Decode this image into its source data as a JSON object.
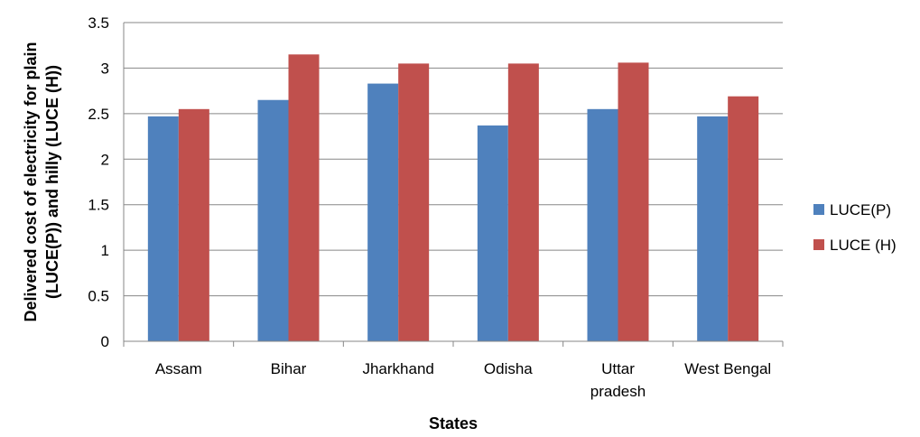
{
  "chart_data": {
    "type": "bar",
    "title": "",
    "xlabel": "States",
    "ylabel_lines": [
      "Delivered cost of electricity for plain",
      "(LUCE(P)) and hilly (LUCE (H))"
    ],
    "categories": [
      [
        "Assam"
      ],
      [
        "Bihar"
      ],
      [
        "Jharkhand"
      ],
      [
        "Odisha"
      ],
      [
        "Uttar",
        "pradesh"
      ],
      [
        "West Bengal"
      ]
    ],
    "series": [
      {
        "name": "LUCE(P)",
        "color": "#4F81BD",
        "values": [
          2.47,
          2.65,
          2.83,
          2.37,
          2.55,
          2.47
        ]
      },
      {
        "name": "LUCE (H)",
        "color": "#C0504D",
        "values": [
          2.55,
          3.15,
          3.05,
          3.05,
          3.06,
          2.69
        ]
      }
    ],
    "ylim": [
      0,
      3.5
    ],
    "yticks": [
      "0",
      "0.5",
      "1",
      "1.5",
      "2",
      "2.5",
      "3",
      "3.5"
    ],
    "grid": true,
    "legend_position": "right"
  }
}
